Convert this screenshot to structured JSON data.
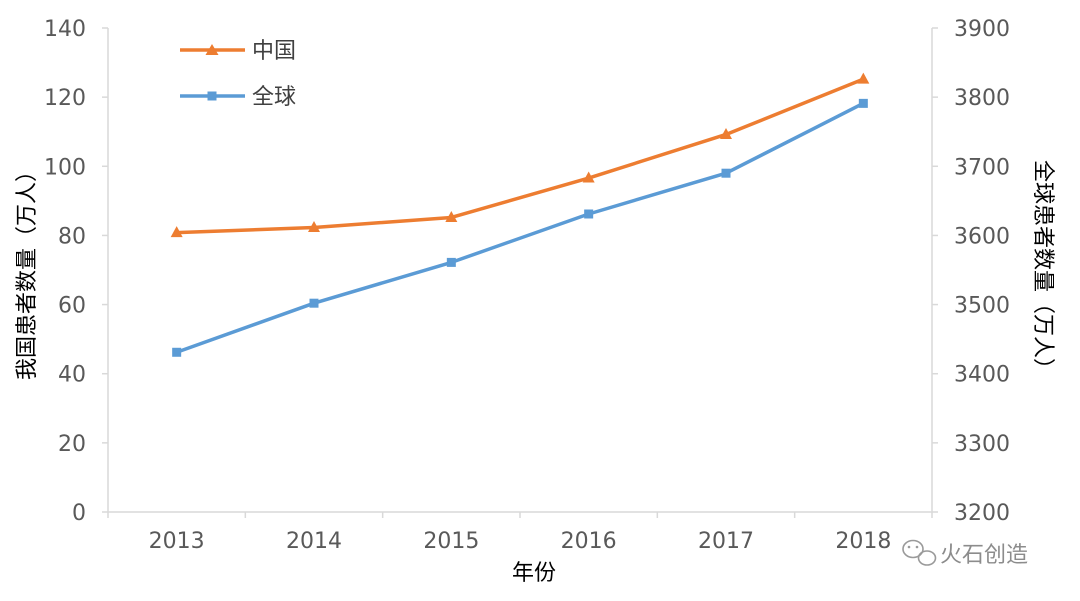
{
  "chart_data": {
    "type": "line",
    "x": [
      "2013",
      "2014",
      "2015",
      "2016",
      "2017",
      "2018"
    ],
    "xlabel": "年份",
    "ylabel_left": "我国患者数量（万人）",
    "ylabel_right": "全球患者数量（万人）",
    "y_left_lim": [
      0,
      140
    ],
    "y_left_ticks": [
      "0",
      "20",
      "40",
      "60",
      "80",
      "100",
      "120",
      "140"
    ],
    "y_right_lim": [
      3200,
      3900
    ],
    "y_right_ticks": [
      "3200",
      "3300",
      "3400",
      "3500",
      "3600",
      "3700",
      "3800",
      "3900"
    ],
    "grid": false,
    "legend_position": "top-left",
    "series": [
      {
        "name": "中国",
        "axis": "left",
        "color": "#ED7D31",
        "marker": "triangle",
        "values": [
          80.8,
          82.3,
          85.2,
          96.6,
          109.2,
          125.2
        ]
      },
      {
        "name": "全球",
        "axis": "right",
        "color": "#5B9BD5",
        "marker": "square",
        "values": [
          3431,
          3502,
          3561,
          3631,
          3690,
          3791
        ]
      }
    ]
  },
  "watermark": {
    "text": "火石创造",
    "icon": "wechat-icon"
  }
}
